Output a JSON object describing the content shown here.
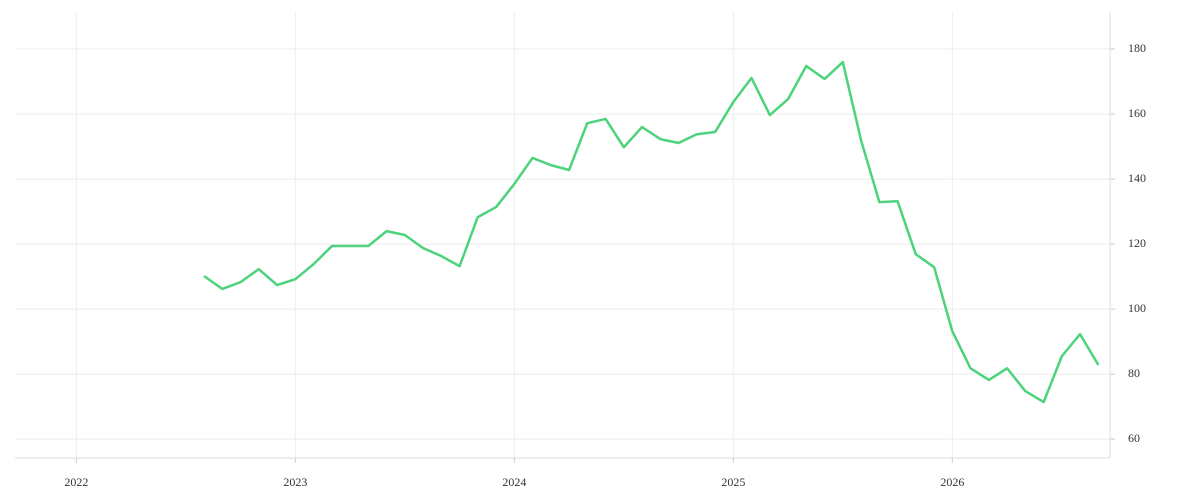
{
  "chart_data": {
    "type": "line",
    "x": [
      2022.583,
      2022.667,
      2022.75,
      2022.833,
      2022.917,
      2023.0,
      2023.083,
      2023.167,
      2023.25,
      2023.333,
      2023.417,
      2023.5,
      2023.583,
      2023.667,
      2023.75,
      2023.833,
      2023.917,
      2024.0,
      2024.083,
      2024.167,
      2024.25,
      2024.333,
      2024.417,
      2024.5,
      2024.583,
      2024.667,
      2024.75,
      2024.833,
      2024.917,
      2025.0,
      2025.083,
      2025.167,
      2025.25,
      2025.333,
      2025.417,
      2025.5,
      2025.583,
      2025.667,
      2025.75,
      2025.833,
      2025.917,
      2026.0,
      2026.083,
      2026.167,
      2026.25,
      2026.333,
      2026.417,
      2026.5,
      2026.583,
      2026.667
    ],
    "series": [
      {
        "color": "#4cd37b",
        "values": [
          110.2,
          106.2,
          108.3,
          112.3,
          107.4,
          109.2,
          113.8,
          119.4,
          119.4,
          119.4,
          124,
          122.8,
          118.8,
          116.3,
          113.2,
          128.3,
          131.4,
          138.5,
          146.5,
          144.3,
          142.8,
          157.2,
          158.5,
          149.8,
          156,
          152.3,
          151.1,
          153.8,
          154.5,
          163.7,
          171.1,
          159.7,
          164.6,
          174.8,
          170.8,
          176,
          152,
          132.9,
          133.2,
          116.9,
          112.9,
          93.2,
          81.8,
          78.2,
          81.8,
          74.8,
          71.4,
          85.5,
          92.3,
          82.8
        ]
      }
    ],
    "xlim": [
      2021.72,
      2026.72
    ],
    "xticks": [
      2022,
      2023,
      2024,
      2025,
      2026
    ],
    "ylim": [
      54.2,
      191.4
    ],
    "yticks": [
      60,
      80,
      100,
      120,
      140,
      160,
      180
    ],
    "grid": true
  }
}
